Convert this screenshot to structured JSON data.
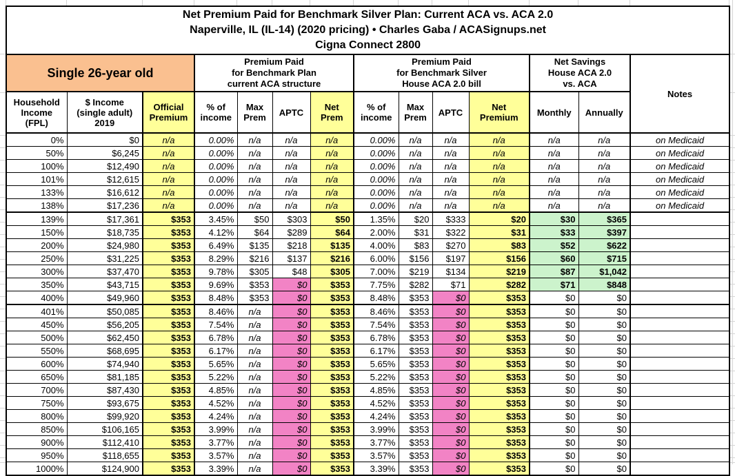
{
  "title": {
    "line1": "Net Premium Paid for Benchmark Silver Plan: Current ACA vs. ACA 2.0",
    "line2": "Naperville, IL (IL-14) (2020 pricing) • Charles Gaba / ACASignups.net",
    "line3": "Cigna Connect 2800"
  },
  "groups": {
    "subject": "Single 26-year old",
    "current_aca": "Premium Paid\nfor Benchmark Plan\ncurrent ACA structure",
    "aca20": "Premium Paid\nfor Benchmark Silver\nHouse ACA 2.0 bill",
    "net_savings": "Net Savings\nHouse ACA 2.0\nvs. ACA",
    "notes": "Notes"
  },
  "columns": [
    "Household\nIncome\n(FPL)",
    "$ Income\n(single adult)\n2019",
    "Official\nPremium",
    "% of\nincome",
    "Max\nPrem",
    "APTC",
    "Net\nPrem",
    "% of\nincome",
    "Max\nPrem",
    "APTC",
    "Net\nPremium",
    "Monthly",
    "Annually"
  ],
  "colors": {
    "header_orange": "#FAC090",
    "highlight_yellow": "#FFFF99",
    "zero_pink": "#F283C5",
    "savings_green": "#CCF3CC"
  },
  "rows": [
    {
      "section": "medicaid",
      "cells": [
        "0%",
        "$0",
        "n/a",
        "0.00%",
        "n/a",
        "n/a",
        "n/a",
        "0.00%",
        "n/a",
        "n/a",
        "n/a",
        "n/a",
        "n/a",
        "on Medicaid"
      ]
    },
    {
      "section": "medicaid",
      "cells": [
        "50%",
        "$6,245",
        "n/a",
        "0.00%",
        "n/a",
        "n/a",
        "n/a",
        "0.00%",
        "n/a",
        "n/a",
        "n/a",
        "n/a",
        "n/a",
        "on Medicaid"
      ]
    },
    {
      "section": "medicaid",
      "cells": [
        "100%",
        "$12,490",
        "n/a",
        "0.00%",
        "n/a",
        "n/a",
        "n/a",
        "0.00%",
        "n/a",
        "n/a",
        "n/a",
        "n/a",
        "n/a",
        "on Medicaid"
      ]
    },
    {
      "section": "medicaid",
      "cells": [
        "101%",
        "$12,615",
        "n/a",
        "0.00%",
        "n/a",
        "n/a",
        "n/a",
        "0.00%",
        "n/a",
        "n/a",
        "n/a",
        "n/a",
        "n/a",
        "on Medicaid"
      ]
    },
    {
      "section": "medicaid",
      "cells": [
        "133%",
        "$16,612",
        "n/a",
        "0.00%",
        "n/a",
        "n/a",
        "n/a",
        "0.00%",
        "n/a",
        "n/a",
        "n/a",
        "n/a",
        "n/a",
        "on Medicaid"
      ]
    },
    {
      "section": "medicaid",
      "cells": [
        "138%",
        "$17,236",
        "n/a",
        "0.00%",
        "n/a",
        "n/a",
        "n/a",
        "0.00%",
        "n/a",
        "n/a",
        "n/a",
        "n/a",
        "n/a",
        "on Medicaid"
      ]
    },
    {
      "section": "subsidized",
      "cells": [
        "139%",
        "$17,361",
        "$353",
        "3.45%",
        "$50",
        "$303",
        "$50",
        "1.35%",
        "$20",
        "$333",
        "$20",
        "$30",
        "$365",
        ""
      ]
    },
    {
      "section": "subsidized",
      "cells": [
        "150%",
        "$18,735",
        "$353",
        "4.12%",
        "$64",
        "$289",
        "$64",
        "2.00%",
        "$31",
        "$322",
        "$31",
        "$33",
        "$397",
        ""
      ]
    },
    {
      "section": "subsidized",
      "cells": [
        "200%",
        "$24,980",
        "$353",
        "6.49%",
        "$135",
        "$218",
        "$135",
        "4.00%",
        "$83",
        "$270",
        "$83",
        "$52",
        "$622",
        ""
      ]
    },
    {
      "section": "subsidized",
      "cells": [
        "250%",
        "$31,225",
        "$353",
        "8.29%",
        "$216",
        "$137",
        "$216",
        "6.00%",
        "$156",
        "$197",
        "$156",
        "$60",
        "$715",
        ""
      ]
    },
    {
      "section": "subsidized",
      "cells": [
        "300%",
        "$37,470",
        "$353",
        "9.78%",
        "$305",
        "$48",
        "$305",
        "7.00%",
        "$219",
        "$134",
        "$219",
        "$87",
        "$1,042",
        ""
      ]
    },
    {
      "section": "subsidized",
      "cells": [
        "350%",
        "$43,715",
        "$353",
        "9.69%",
        "$353",
        "$0",
        "$353",
        "7.75%",
        "$282",
        "$71",
        "$282",
        "$71",
        "$848",
        ""
      ]
    },
    {
      "section": "subsidized",
      "cells": [
        "400%",
        "$49,960",
        "$353",
        "8.48%",
        "$353",
        "$0",
        "$353",
        "8.48%",
        "$353",
        "$0",
        "$353",
        "$0",
        "$0",
        ""
      ]
    },
    {
      "section": "unsubsidized",
      "cells": [
        "401%",
        "$50,085",
        "$353",
        "8.46%",
        "n/a",
        "$0",
        "$353",
        "8.46%",
        "$353",
        "$0",
        "$353",
        "$0",
        "$0",
        ""
      ]
    },
    {
      "section": "unsubsidized",
      "cells": [
        "450%",
        "$56,205",
        "$353",
        "7.54%",
        "n/a",
        "$0",
        "$353",
        "7.54%",
        "$353",
        "$0",
        "$353",
        "$0",
        "$0",
        ""
      ]
    },
    {
      "section": "unsubsidized",
      "cells": [
        "500%",
        "$62,450",
        "$353",
        "6.78%",
        "n/a",
        "$0",
        "$353",
        "6.78%",
        "$353",
        "$0",
        "$353",
        "$0",
        "$0",
        ""
      ]
    },
    {
      "section": "unsubsidized",
      "cells": [
        "550%",
        "$68,695",
        "$353",
        "6.17%",
        "n/a",
        "$0",
        "$353",
        "6.17%",
        "$353",
        "$0",
        "$353",
        "$0",
        "$0",
        ""
      ]
    },
    {
      "section": "unsubsidized",
      "cells": [
        "600%",
        "$74,940",
        "$353",
        "5.65%",
        "n/a",
        "$0",
        "$353",
        "5.65%",
        "$353",
        "$0",
        "$353",
        "$0",
        "$0",
        ""
      ]
    },
    {
      "section": "unsubsidized",
      "cells": [
        "650%",
        "$81,185",
        "$353",
        "5.22%",
        "n/a",
        "$0",
        "$353",
        "5.22%",
        "$353",
        "$0",
        "$353",
        "$0",
        "$0",
        ""
      ]
    },
    {
      "section": "unsubsidized",
      "cells": [
        "700%",
        "$87,430",
        "$353",
        "4.85%",
        "n/a",
        "$0",
        "$353",
        "4.85%",
        "$353",
        "$0",
        "$353",
        "$0",
        "$0",
        ""
      ]
    },
    {
      "section": "unsubsidized",
      "cells": [
        "750%",
        "$93,675",
        "$353",
        "4.52%",
        "n/a",
        "$0",
        "$353",
        "4.52%",
        "$353",
        "$0",
        "$353",
        "$0",
        "$0",
        ""
      ]
    },
    {
      "section": "unsubsidized",
      "cells": [
        "800%",
        "$99,920",
        "$353",
        "4.24%",
        "n/a",
        "$0",
        "$353",
        "4.24%",
        "$353",
        "$0",
        "$353",
        "$0",
        "$0",
        ""
      ]
    },
    {
      "section": "unsubsidized",
      "cells": [
        "850%",
        "$106,165",
        "$353",
        "3.99%",
        "n/a",
        "$0",
        "$353",
        "3.99%",
        "$353",
        "$0",
        "$353",
        "$0",
        "$0",
        ""
      ]
    },
    {
      "section": "unsubsidized",
      "cells": [
        "900%",
        "$112,410",
        "$353",
        "3.77%",
        "n/a",
        "$0",
        "$353",
        "3.77%",
        "$353",
        "$0",
        "$353",
        "$0",
        "$0",
        ""
      ]
    },
    {
      "section": "unsubsidized",
      "cells": [
        "950%",
        "$118,655",
        "$353",
        "3.57%",
        "n/a",
        "$0",
        "$353",
        "3.57%",
        "$353",
        "$0",
        "$353",
        "$0",
        "$0",
        ""
      ]
    },
    {
      "section": "unsubsidized",
      "cells": [
        "1000%",
        "$124,900",
        "$353",
        "3.39%",
        "n/a",
        "$0",
        "$353",
        "3.39%",
        "$353",
        "$0",
        "$353",
        "$0",
        "$0",
        ""
      ]
    }
  ]
}
